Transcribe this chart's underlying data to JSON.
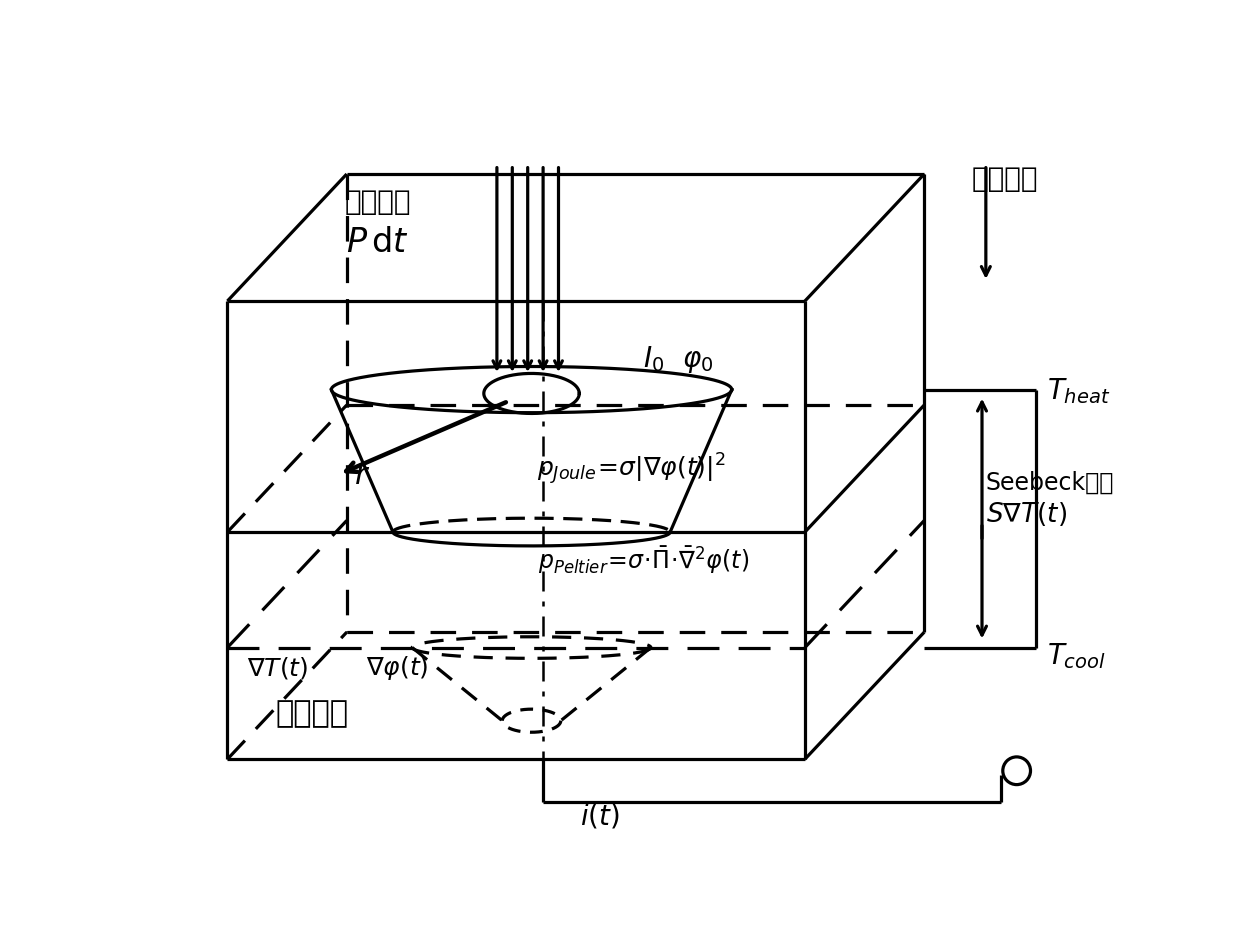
{
  "bg_color": "#ffffff",
  "lc": "#000000",
  "labels": {
    "electron_energy_line1": "电子动能",
    "electron_energy_line2": "$P\\,\\mathrm{d}t$",
    "direction": "方向为正",
    "I0_phi0": "$I_0\\ \\ \\varphi_0$",
    "r_label": "$r$",
    "p_joule": "$p_{Joule}\\!=\\!\\sigma|\\nabla\\varphi(t)|^2$",
    "p_peltier": "$p_{Peltier}\\!=\\!\\sigma\\!\\cdot\\!\\bar{\\Pi}\\!\\cdot\\!\\bar{\\nabla}^2\\varphi(t)$",
    "nabla_T": "$\\nabla T(t)$",
    "nabla_phi": "$\\nabla\\varphi(t)$",
    "T_heat": "$T_{heat}$",
    "seebeck_line1": "Seebeck效应",
    "seebeck_line2": "$S\\nabla T(t)$",
    "T_cool": "$T_{cool}$",
    "i_t": "$i(t)$",
    "sample": "热电样品"
  }
}
